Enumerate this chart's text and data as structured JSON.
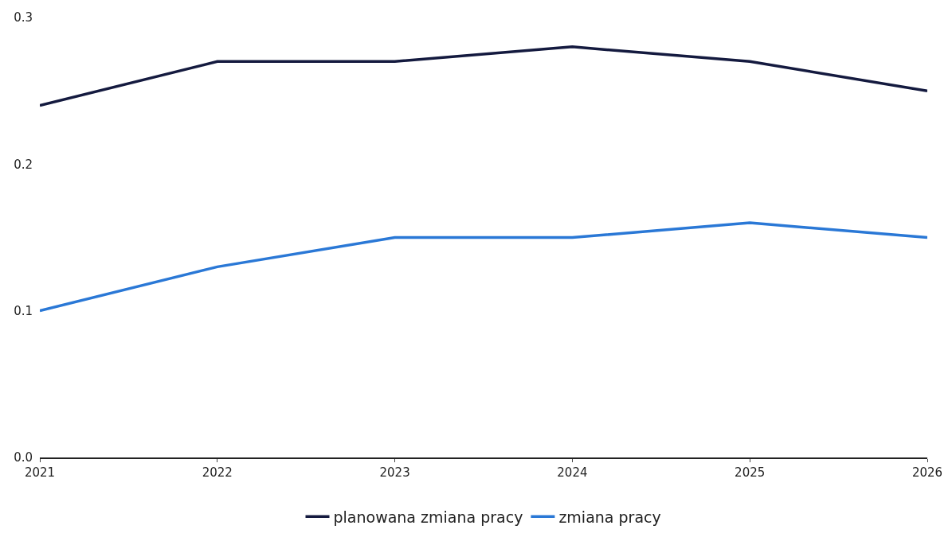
{
  "chart_data": {
    "type": "line",
    "x": [
      2021,
      2022,
      2023,
      2024,
      2025,
      2026
    ],
    "series": [
      {
        "name": "planowana zmiana pracy",
        "color": "#141a3f",
        "values": [
          0.24,
          0.27,
          0.27,
          0.28,
          0.27,
          0.25
        ]
      },
      {
        "name": "zmiana pracy",
        "color": "#2a78d6",
        "values": [
          0.1,
          0.13,
          0.15,
          0.15,
          0.16,
          0.15
        ]
      }
    ],
    "xlim": [
      2021,
      2026
    ],
    "xticks": [
      2021,
      2022,
      2023,
      2024,
      2025,
      2026
    ],
    "ylim": [
      0,
      0.3
    ],
    "yticks": [
      {
        "value": 0,
        "label": "0.0"
      },
      {
        "value": 0.1,
        "label": "0.1"
      },
      {
        "value": 0.2,
        "label": "0.2"
      },
      {
        "value": 0.3,
        "label": "0.3"
      }
    ],
    "legend": "bottom",
    "marker": "none",
    "line_style": "solid"
  }
}
